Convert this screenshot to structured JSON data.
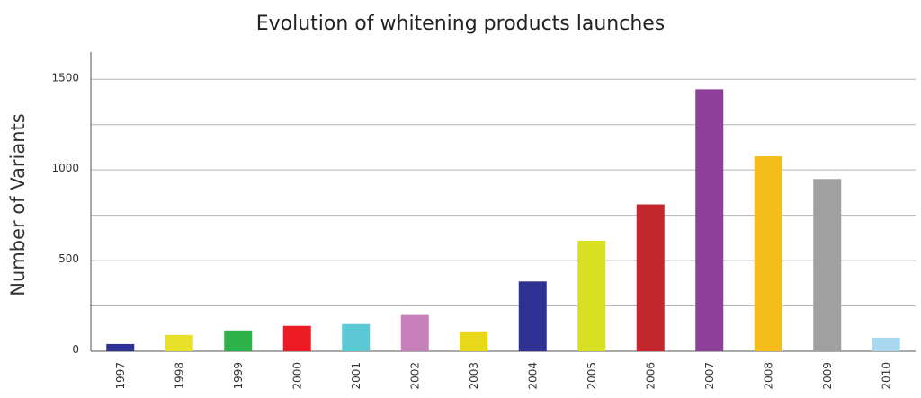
{
  "chart_data": {
    "type": "bar",
    "title": "Evolution of whitening products launches",
    "xlabel": "",
    "ylabel": "Number of Variants",
    "categories": [
      "1997",
      "1998",
      "1999",
      "2000",
      "2001",
      "2002",
      "2003",
      "2004",
      "2005",
      "2006",
      "2007",
      "2008",
      "2009",
      "2010"
    ],
    "values": [
      40,
      90,
      115,
      140,
      150,
      200,
      110,
      385,
      610,
      810,
      1445,
      1075,
      950,
      75
    ],
    "colors": [
      "#2e3192",
      "#e8e12a",
      "#2db34a",
      "#ed1c24",
      "#5bc8d4",
      "#c77fba",
      "#e8d81a",
      "#2e3192",
      "#d9e021",
      "#c1272d",
      "#8e3f99",
      "#f4bd1a",
      "#a0a0a0",
      "#a8d8f0"
    ],
    "ylim": [
      0,
      1650
    ],
    "yticks": [
      0,
      500,
      1000,
      1500
    ],
    "grid": true,
    "legend": "none"
  }
}
